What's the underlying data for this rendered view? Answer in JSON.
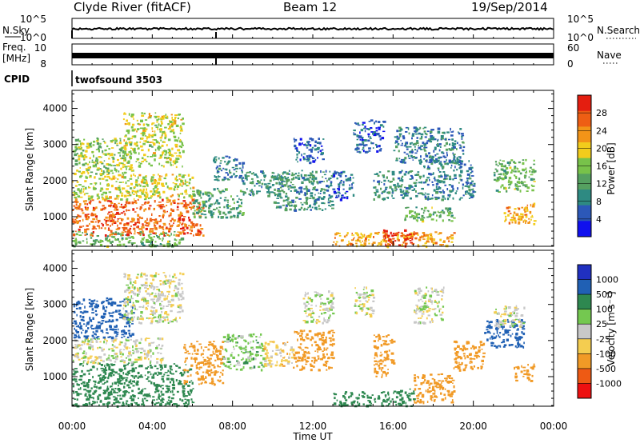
{
  "header": {
    "station": "Clyde River (fitACF)",
    "beam": "Beam 12",
    "date": "19/Sep/2014"
  },
  "top_panels": {
    "nsky_label": "N.Sky",
    "nsky_ticks": [
      "10^5",
      "10^0"
    ],
    "nsearch_label": "N.Search",
    "nsearch_ticks": [
      "10^5",
      "10^0"
    ],
    "freq_label": "Freq.",
    "freq_unit": "[MHz]",
    "freq_ticks": [
      "10",
      "8"
    ],
    "nave_label": "Nave",
    "nave_ticks": [
      "60",
      "0"
    ],
    "cpid_label": "CPID",
    "cpid_value": "twofsound 3503"
  },
  "colors": {
    "power_scale": [
      "#1010ee",
      "#2c58b8",
      "#2e8a82",
      "#55a060",
      "#78c24a",
      "#f2cc1c",
      "#f29418",
      "#ee5e14",
      "#e41e10"
    ],
    "velocity_scale": [
      "#ee1010",
      "#ee5a14",
      "#f19a26",
      "#f4cd50",
      "#c8c8c8",
      "#74c850",
      "#2e8850",
      "#2060b4",
      "#2030c0"
    ]
  },
  "chart_data": [
    {
      "type": "heatmap",
      "title": "",
      "quantity": "Power",
      "colorbar_label": "Power [dB]",
      "colorbar_ticks": [
        "28",
        "24",
        "20",
        "16",
        "12",
        "8",
        "4"
      ],
      "colorbar_range": [
        0,
        32
      ],
      "xlabel": "",
      "ylabel": "Slant Range [km]",
      "y_ticks": [
        "4000",
        "3000",
        "2000",
        "1000"
      ],
      "xlim_hours": [
        0,
        24
      ],
      "ylim_km": [
        180,
        4500
      ],
      "patches": [
        {
          "t0": 0.0,
          "t1": 5.5,
          "r0": 200,
          "r1": 600,
          "value": 14
        },
        {
          "t0": 0.0,
          "t1": 6.5,
          "r0": 500,
          "r1": 1500,
          "value": 26
        },
        {
          "t0": 0.0,
          "t1": 6.0,
          "r0": 1500,
          "r1": 2200,
          "value": 18
        },
        {
          "t0": 0.0,
          "t1": 3.0,
          "r0": 2200,
          "r1": 3200,
          "value": 16
        },
        {
          "t0": 2.5,
          "t1": 5.5,
          "r0": 2400,
          "r1": 3900,
          "value": 18
        },
        {
          "t0": 6.0,
          "t1": 8.5,
          "r0": 1000,
          "r1": 1800,
          "value": 12
        },
        {
          "t0": 7.0,
          "t1": 8.5,
          "r0": 2000,
          "r1": 2700,
          "value": 8
        },
        {
          "t0": 8.5,
          "t1": 10.5,
          "r0": 1600,
          "r1": 2300,
          "value": 10
        },
        {
          "t0": 10.0,
          "t1": 13.0,
          "r0": 1200,
          "r1": 2300,
          "value": 10
        },
        {
          "t0": 11.0,
          "t1": 12.5,
          "r0": 2500,
          "r1": 3200,
          "value": 6
        },
        {
          "t0": 13.0,
          "t1": 14.0,
          "r0": 1500,
          "r1": 2300,
          "value": 6
        },
        {
          "t0": 14.0,
          "t1": 15.5,
          "r0": 2800,
          "r1": 3700,
          "value": 6
        },
        {
          "t0": 13.0,
          "t1": 19.0,
          "r0": 200,
          "r1": 600,
          "value": 22
        },
        {
          "t0": 15.5,
          "t1": 17.0,
          "r0": 200,
          "r1": 650,
          "value": 29
        },
        {
          "t0": 15.0,
          "t1": 17.5,
          "r0": 1500,
          "r1": 2300,
          "value": 10
        },
        {
          "t0": 16.5,
          "t1": 19.0,
          "r0": 900,
          "r1": 1300,
          "value": 14
        },
        {
          "t0": 16.0,
          "t1": 19.5,
          "r0": 2500,
          "r1": 3500,
          "value": 8
        },
        {
          "t0": 17.5,
          "t1": 20.0,
          "r0": 1500,
          "r1": 2600,
          "value": 8
        },
        {
          "t0": 21.0,
          "t1": 23.0,
          "r0": 1700,
          "r1": 2600,
          "value": 14
        },
        {
          "t0": 21.5,
          "t1": 23.0,
          "r0": 800,
          "r1": 1400,
          "value": 22
        }
      ]
    },
    {
      "type": "heatmap",
      "title": "",
      "quantity": "Velocity",
      "colorbar_label": "Velocity [m s⁻¹]",
      "colorbar_ticks": [
        "1000",
        "500",
        "100",
        "25",
        "-25",
        "-100",
        "-500",
        "-1000"
      ],
      "xlabel": "Time UT",
      "ylabel": "Slant Range [km]",
      "x_ticks": [
        "00:00",
        "04:00",
        "08:00",
        "12:00",
        "16:00",
        "20:00",
        "00:00"
      ],
      "y_ticks": [
        "4000",
        "3000",
        "2000",
        "1000"
      ],
      "xlim_hours": [
        0,
        24
      ],
      "ylim_km": [
        180,
        4500
      ],
      "patches": [
        {
          "t0": 0.0,
          "t1": 6.0,
          "r0": 200,
          "r1": 1400,
          "value": 300
        },
        {
          "t0": 0.0,
          "t1": 4.5,
          "r0": 1400,
          "r1": 2100,
          "value": 0
        },
        {
          "t0": 0.0,
          "t1": 3.0,
          "r0": 2100,
          "r1": 3200,
          "value": 600
        },
        {
          "t0": 2.5,
          "t1": 5.5,
          "r0": 2500,
          "r1": 3900,
          "value": 0
        },
        {
          "t0": 5.5,
          "t1": 7.5,
          "r0": 800,
          "r1": 2000,
          "value": -200
        },
        {
          "t0": 7.5,
          "t1": 9.5,
          "r0": 1200,
          "r1": 2200,
          "value": 60
        },
        {
          "t0": 9.5,
          "t1": 11.0,
          "r0": 1300,
          "r1": 2000,
          "value": -50
        },
        {
          "t0": 11.0,
          "t1": 13.0,
          "r0": 1200,
          "r1": 2300,
          "value": -300
        },
        {
          "t0": 11.5,
          "t1": 13.0,
          "r0": 2500,
          "r1": 3400,
          "value": 0
        },
        {
          "t0": 13.0,
          "t1": 16.0,
          "r0": 200,
          "r1": 600,
          "value": 300
        },
        {
          "t0": 14.0,
          "t1": 15.0,
          "r0": 2700,
          "r1": 3500,
          "value": 0
        },
        {
          "t0": 15.0,
          "t1": 16.0,
          "r0": 1000,
          "r1": 2200,
          "value": -300
        },
        {
          "t0": 16.0,
          "t1": 17.0,
          "r0": 200,
          "r1": 700,
          "value": 300
        },
        {
          "t0": 17.0,
          "t1": 19.0,
          "r0": 300,
          "r1": 1100,
          "value": -200
        },
        {
          "t0": 17.0,
          "t1": 18.5,
          "r0": 2500,
          "r1": 3500,
          "value": 0
        },
        {
          "t0": 19.0,
          "t1": 20.5,
          "r0": 1200,
          "r1": 2000,
          "value": -300
        },
        {
          "t0": 20.5,
          "t1": 22.5,
          "r0": 1800,
          "r1": 2600,
          "value": 700
        },
        {
          "t0": 21.0,
          "t1": 22.5,
          "r0": 2400,
          "r1": 3000,
          "value": 0
        },
        {
          "t0": 22.0,
          "t1": 23.0,
          "r0": 900,
          "r1": 1400,
          "value": -400
        }
      ]
    }
  ]
}
